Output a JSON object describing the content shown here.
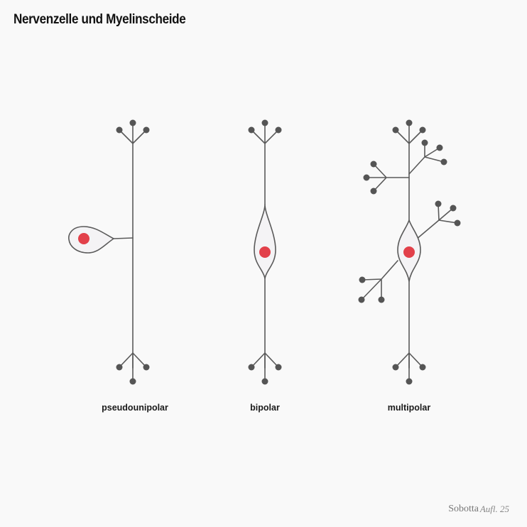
{
  "title": "Nervenzelle und Myelinscheide",
  "neurons": [
    {
      "label": "pseudounipolar"
    },
    {
      "label": "bipolar"
    },
    {
      "label": "multipolar"
    }
  ],
  "credit": {
    "name": "Sobotta",
    "edition": "Aufl. 25"
  },
  "colors": {
    "background": "#f9f9f9",
    "line": "#5a5a5a",
    "terminal": "#555555",
    "soma_fill": "#f4f3f5",
    "nucleus": "#e2404a"
  }
}
